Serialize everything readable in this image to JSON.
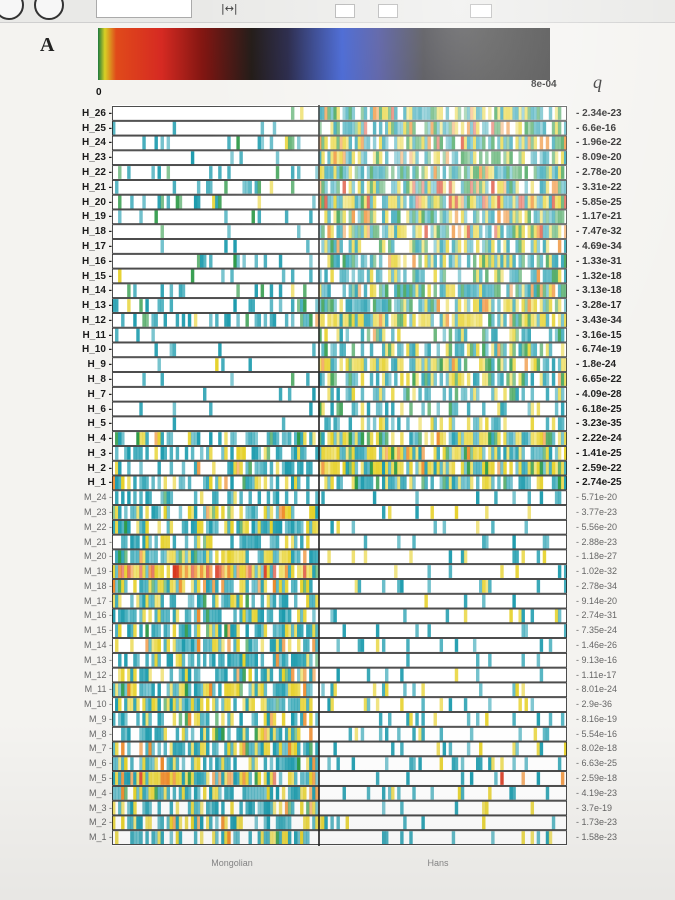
{
  "panel_label": "A",
  "toolbar": {
    "icons": [
      "back-circle-icon",
      "info-circle-icon",
      "fit-width-icon"
    ],
    "fit_label": "|↔|"
  },
  "colors": {
    "white": "#ffffff",
    "teal": "#1e9cae",
    "green": "#2e9a48",
    "yellow": "#e6d12a",
    "orange": "#ee8a2a",
    "red": "#d8361d",
    "frame": "#202020"
  },
  "chart_data": {
    "type": "heatmap",
    "colorbar": {
      "min_label": "0",
      "max_label": "8e-04"
    },
    "q_header": "q",
    "rows": [
      "H_26",
      "H_25",
      "H_24",
      "H_23",
      "H_22",
      "H_21",
      "H_20",
      "H_19",
      "H_18",
      "H_17",
      "H_16",
      "H_15",
      "H_14",
      "H_13",
      "H_12",
      "H_11",
      "H_10",
      "H_9",
      "H_8",
      "H_7",
      "H_6",
      "H_5",
      "H_4",
      "H_3",
      "H_2",
      "H_1",
      "M_24",
      "M_23",
      "M_22",
      "M_21",
      "M_20",
      "M_19",
      "M_18",
      "M_17",
      "M_16",
      "M_15",
      "M_14",
      "M_13",
      "M_12",
      "M_11",
      "M_10",
      "M_9",
      "M_8",
      "M_7",
      "M_6",
      "M_5",
      "M_4",
      "M_3",
      "M_2",
      "M_1"
    ],
    "q_values": [
      "2.34e-23",
      "6.6e-16",
      "1.96e-22",
      "8.09e-20",
      "2.78e-20",
      "3.31e-22",
      "5.85e-25",
      "1.17e-21",
      "7.47e-32",
      "4.69e-34",
      "1.33e-31",
      "1.32e-18",
      "3.13e-18",
      "3.28e-17",
      "3.43e-34",
      "3.16e-15",
      "6.74e-19",
      "1.8e-24",
      "6.65e-22",
      "4.09e-28",
      "6.18e-25",
      "3.23e-35",
      "2.22e-24",
      "1.41e-25",
      "2.59e-22",
      "2.74e-25",
      "5.71e-20",
      "3.77e-23",
      "5.56e-20",
      "2.88e-23",
      "1.18e-27",
      "1.02e-32",
      "2.78e-34",
      "9.14e-20",
      "2.74e-31",
      "7.35e-24",
      "1.46e-26",
      "9.13e-16",
      "1.11e-17",
      "8.01e-24",
      "2.9e-36",
      "8.16e-19",
      "5.54e-16",
      "8.02e-18",
      "6.63e-25",
      "2.59e-18",
      "4.19e-23",
      "3.7e-19",
      "1.73e-23",
      "1.58e-23"
    ],
    "groups": [
      "Mongolian",
      "Hans"
    ],
    "row_profiles": [
      {
        "m": [
          0.06,
          0.02,
          0.01,
          0.0,
          0.0
        ],
        "h": [
          0.28,
          0.18,
          0.22,
          0.08,
          0.02
        ]
      },
      {
        "m": [
          0.07,
          0.01,
          0.0,
          0.0,
          0.0
        ],
        "h": [
          0.3,
          0.2,
          0.14,
          0.08,
          0.02
        ]
      },
      {
        "m": [
          0.14,
          0.03,
          0.01,
          0.0,
          0.0
        ],
        "h": [
          0.26,
          0.24,
          0.2,
          0.1,
          0.02
        ]
      },
      {
        "m": [
          0.05,
          0.01,
          0.0,
          0.0,
          0.0
        ],
        "h": [
          0.3,
          0.24,
          0.14,
          0.04,
          0.0
        ]
      },
      {
        "m": [
          0.12,
          0.04,
          0.01,
          0.0,
          0.0
        ],
        "h": [
          0.28,
          0.26,
          0.18,
          0.04,
          0.0
        ]
      },
      {
        "m": [
          0.1,
          0.05,
          0.01,
          0.0,
          0.0
        ],
        "h": [
          0.26,
          0.2,
          0.2,
          0.12,
          0.06
        ]
      },
      {
        "m": [
          0.18,
          0.08,
          0.02,
          0.0,
          0.0
        ],
        "h": [
          0.24,
          0.18,
          0.22,
          0.12,
          0.12
        ]
      },
      {
        "m": [
          0.08,
          0.03,
          0.0,
          0.0,
          0.0
        ],
        "h": [
          0.26,
          0.22,
          0.18,
          0.06,
          0.0
        ]
      },
      {
        "m": [
          0.1,
          0.03,
          0.01,
          0.0,
          0.0
        ],
        "h": [
          0.24,
          0.16,
          0.28,
          0.12,
          0.04
        ]
      },
      {
        "m": [
          0.06,
          0.02,
          0.0,
          0.0,
          0.0
        ],
        "h": [
          0.34,
          0.16,
          0.14,
          0.02,
          0.0
        ]
      },
      {
        "m": [
          0.08,
          0.02,
          0.02,
          0.0,
          0.0
        ],
        "h": [
          0.32,
          0.16,
          0.2,
          0.04,
          0.0
        ]
      },
      {
        "m": [
          0.1,
          0.02,
          0.01,
          0.0,
          0.0
        ],
        "h": [
          0.34,
          0.18,
          0.12,
          0.02,
          0.0
        ]
      },
      {
        "m": [
          0.12,
          0.03,
          0.01,
          0.0,
          0.0
        ],
        "h": [
          0.36,
          0.18,
          0.14,
          0.02,
          0.0
        ]
      },
      {
        "m": [
          0.14,
          0.04,
          0.02,
          0.0,
          0.0
        ],
        "h": [
          0.34,
          0.16,
          0.24,
          0.04,
          0.0
        ]
      },
      {
        "m": [
          0.22,
          0.08,
          0.03,
          0.01,
          0.0
        ],
        "h": [
          0.22,
          0.1,
          0.46,
          0.06,
          0.0
        ]
      },
      {
        "m": [
          0.05,
          0.01,
          0.0,
          0.0,
          0.0
        ],
        "h": [
          0.26,
          0.08,
          0.08,
          0.02,
          0.0
        ]
      },
      {
        "m": [
          0.06,
          0.01,
          0.0,
          0.0,
          0.0
        ],
        "h": [
          0.32,
          0.1,
          0.16,
          0.02,
          0.0
        ]
      },
      {
        "m": [
          0.08,
          0.01,
          0.01,
          0.0,
          0.0
        ],
        "h": [
          0.34,
          0.12,
          0.24,
          0.02,
          0.0
        ]
      },
      {
        "m": [
          0.07,
          0.01,
          0.0,
          0.0,
          0.0
        ],
        "h": [
          0.36,
          0.12,
          0.16,
          0.02,
          0.0
        ]
      },
      {
        "m": [
          0.05,
          0.0,
          0.0,
          0.0,
          0.0
        ],
        "h": [
          0.3,
          0.06,
          0.08,
          0.0,
          0.0
        ]
      },
      {
        "m": [
          0.05,
          0.0,
          0.0,
          0.0,
          0.0
        ],
        "h": [
          0.28,
          0.06,
          0.08,
          0.0,
          0.0
        ]
      },
      {
        "m": [
          0.06,
          0.0,
          0.0,
          0.0,
          0.0
        ],
        "h": [
          0.3,
          0.06,
          0.1,
          0.0,
          0.0
        ]
      },
      {
        "m": [
          0.4,
          0.03,
          0.1,
          0.01,
          0.0
        ],
        "h": [
          0.26,
          0.08,
          0.5,
          0.04,
          0.0
        ]
      },
      {
        "m": [
          0.36,
          0.02,
          0.08,
          0.01,
          0.0
        ],
        "h": [
          0.28,
          0.06,
          0.46,
          0.04,
          0.0
        ]
      },
      {
        "m": [
          0.34,
          0.02,
          0.08,
          0.01,
          0.0
        ],
        "h": [
          0.32,
          0.06,
          0.4,
          0.02,
          0.0
        ]
      },
      {
        "m": [
          0.34,
          0.02,
          0.08,
          0.01,
          0.0
        ],
        "h": [
          0.38,
          0.06,
          0.28,
          0.02,
          0.0
        ]
      },
      {
        "m": [
          0.38,
          0.02,
          0.08,
          0.0,
          0.0
        ],
        "h": [
          0.08,
          0.0,
          0.02,
          0.0,
          0.0
        ]
      },
      {
        "m": [
          0.4,
          0.03,
          0.2,
          0.02,
          0.0
        ],
        "h": [
          0.08,
          0.0,
          0.02,
          0.0,
          0.0
        ]
      },
      {
        "m": [
          0.4,
          0.03,
          0.24,
          0.02,
          0.0
        ],
        "h": [
          0.08,
          0.0,
          0.02,
          0.0,
          0.0
        ]
      },
      {
        "m": [
          0.38,
          0.02,
          0.16,
          0.01,
          0.0
        ],
        "h": [
          0.07,
          0.0,
          0.02,
          0.0,
          0.0
        ]
      },
      {
        "m": [
          0.4,
          0.03,
          0.3,
          0.04,
          0.0
        ],
        "h": [
          0.1,
          0.0,
          0.04,
          0.0,
          0.0
        ]
      },
      {
        "m": [
          0.2,
          0.03,
          0.3,
          0.16,
          0.2
        ],
        "h": [
          0.06,
          0.0,
          0.04,
          0.01,
          0.02
        ]
      },
      {
        "m": [
          0.38,
          0.03,
          0.36,
          0.04,
          0.0
        ],
        "h": [
          0.1,
          0.0,
          0.04,
          0.0,
          0.0
        ]
      },
      {
        "m": [
          0.4,
          0.02,
          0.18,
          0.02,
          0.0
        ],
        "h": [
          0.08,
          0.0,
          0.02,
          0.0,
          0.0
        ]
      },
      {
        "m": [
          0.4,
          0.02,
          0.24,
          0.02,
          0.0
        ],
        "h": [
          0.1,
          0.0,
          0.03,
          0.0,
          0.0
        ]
      },
      {
        "m": [
          0.42,
          0.03,
          0.22,
          0.02,
          0.0
        ],
        "h": [
          0.1,
          0.0,
          0.03,
          0.0,
          0.0
        ]
      },
      {
        "m": [
          0.4,
          0.02,
          0.2,
          0.02,
          0.0
        ],
        "h": [
          0.1,
          0.0,
          0.02,
          0.0,
          0.0
        ]
      },
      {
        "m": [
          0.4,
          0.02,
          0.14,
          0.01,
          0.0
        ],
        "h": [
          0.08,
          0.0,
          0.02,
          0.0,
          0.0
        ]
      },
      {
        "m": [
          0.4,
          0.02,
          0.18,
          0.02,
          0.0
        ],
        "h": [
          0.08,
          0.0,
          0.02,
          0.0,
          0.0
        ]
      },
      {
        "m": [
          0.42,
          0.02,
          0.24,
          0.02,
          0.0
        ],
        "h": [
          0.1,
          0.0,
          0.03,
          0.0,
          0.0
        ]
      },
      {
        "m": [
          0.4,
          0.03,
          0.34,
          0.03,
          0.0
        ],
        "h": [
          0.1,
          0.0,
          0.04,
          0.0,
          0.0
        ]
      },
      {
        "m": [
          0.38,
          0.02,
          0.16,
          0.02,
          0.0
        ],
        "h": [
          0.08,
          0.0,
          0.02,
          0.0,
          0.0
        ]
      },
      {
        "m": [
          0.4,
          0.02,
          0.16,
          0.02,
          0.0
        ],
        "h": [
          0.08,
          0.0,
          0.02,
          0.0,
          0.0
        ]
      },
      {
        "m": [
          0.4,
          0.03,
          0.3,
          0.04,
          0.01
        ],
        "h": [
          0.1,
          0.0,
          0.04,
          0.0,
          0.0
        ]
      },
      {
        "m": [
          0.4,
          0.02,
          0.22,
          0.02,
          0.0
        ],
        "h": [
          0.1,
          0.0,
          0.03,
          0.0,
          0.0
        ]
      },
      {
        "m": [
          0.32,
          0.02,
          0.3,
          0.14,
          0.06
        ],
        "h": [
          0.08,
          0.0,
          0.04,
          0.04,
          0.03
        ]
      },
      {
        "m": [
          0.4,
          0.02,
          0.2,
          0.02,
          0.0
        ],
        "h": [
          0.1,
          0.0,
          0.03,
          0.0,
          0.0
        ]
      },
      {
        "m": [
          0.38,
          0.02,
          0.16,
          0.02,
          0.0
        ],
        "h": [
          0.08,
          0.0,
          0.02,
          0.0,
          0.0
        ]
      },
      {
        "m": [
          0.4,
          0.02,
          0.22,
          0.02,
          0.0
        ],
        "h": [
          0.1,
          0.0,
          0.03,
          0.0,
          0.0
        ]
      },
      {
        "m": [
          0.4,
          0.02,
          0.2,
          0.02,
          0.0
        ],
        "h": [
          0.09,
          0.0,
          0.02,
          0.0,
          0.0
        ]
      }
    ]
  }
}
